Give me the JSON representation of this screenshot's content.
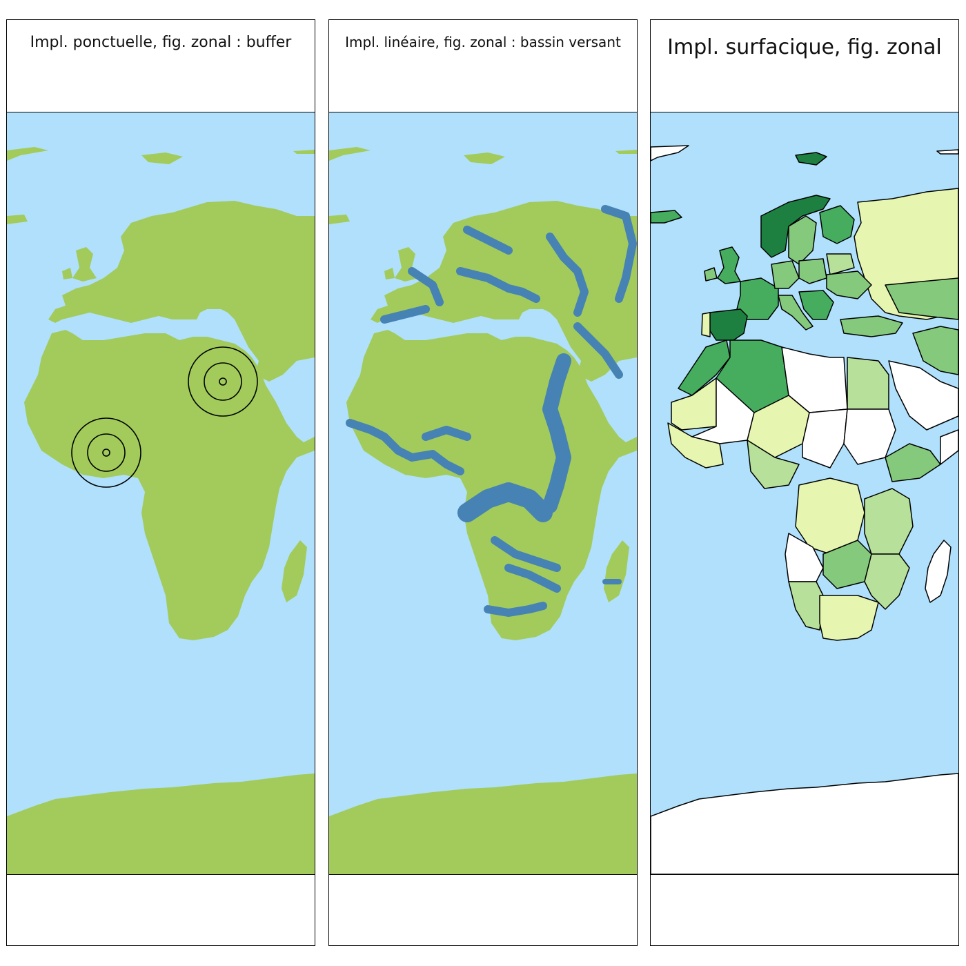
{
  "colors": {
    "ocean": "#b0e0fb",
    "land": "#a2cb5b",
    "river": "#4682b4",
    "choropleth": [
      "#ffffe0",
      "#e6f5b0",
      "#b7e09a",
      "#84c97c",
      "#46ad5f",
      "#1e8040"
    ],
    "no_data": "#ffffff"
  },
  "panels": [
    {
      "id": "point",
      "title": "Impl. ponctuelle, fig. zonal : buffer",
      "symbology": "buffer",
      "buffer_rings": 3
    },
    {
      "id": "line",
      "title": "Impl. linéaire, fig. zonal : bassin versant",
      "symbology": "watershed"
    },
    {
      "id": "area",
      "title": "Impl. surfacique, fig. zonal",
      "symbology": "choropleth"
    }
  ]
}
